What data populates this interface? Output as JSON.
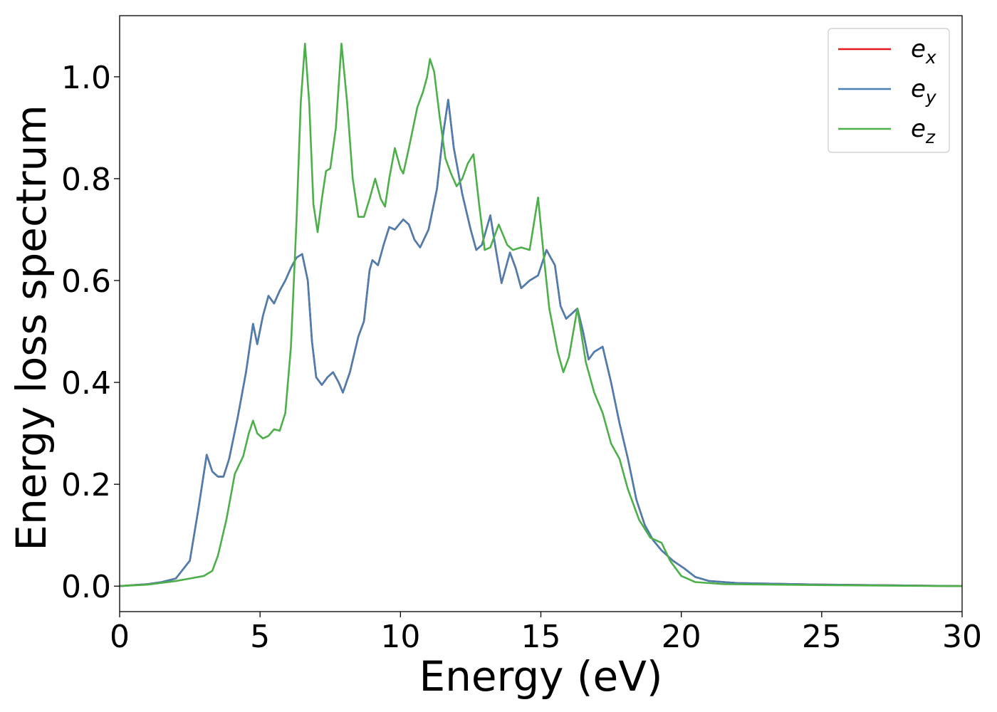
{
  "chart_data": {
    "type": "line",
    "title": "",
    "xlabel": "Energy (eV)",
    "ylabel": "Energy loss spectrum",
    "xlim": [
      0,
      30
    ],
    "ylim": [
      -0.05,
      1.12
    ],
    "xticks": [
      0,
      5,
      10,
      15,
      20,
      25,
      30
    ],
    "xtick_labels": [
      "0",
      "5",
      "10",
      "15",
      "20",
      "25",
      "30"
    ],
    "yticks": [
      0.0,
      0.2,
      0.4,
      0.6,
      0.8,
      1.0
    ],
    "ytick_labels": [
      "0.0",
      "0.2",
      "0.4",
      "0.6",
      "0.8",
      "1.0"
    ],
    "grid": false,
    "legend_position": "top-right",
    "series": [
      {
        "name": "e_x",
        "label_base": "e",
        "label_sub": "x",
        "color": "#e41a1c",
        "points": [
          [
            0,
            0.0
          ],
          [
            1,
            0.004
          ],
          [
            1.5,
            0.008
          ],
          [
            2,
            0.015
          ],
          [
            2.5,
            0.05
          ],
          [
            2.8,
            0.15
          ],
          [
            3.1,
            0.258
          ],
          [
            3.3,
            0.225
          ],
          [
            3.5,
            0.215
          ],
          [
            3.7,
            0.215
          ],
          [
            3.9,
            0.25
          ],
          [
            4.2,
            0.33
          ],
          [
            4.5,
            0.42
          ],
          [
            4.75,
            0.515
          ],
          [
            4.9,
            0.475
          ],
          [
            5.1,
            0.53
          ],
          [
            5.3,
            0.57
          ],
          [
            5.5,
            0.555
          ],
          [
            5.7,
            0.58
          ],
          [
            5.9,
            0.6
          ],
          [
            6.1,
            0.625
          ],
          [
            6.3,
            0.645
          ],
          [
            6.5,
            0.652
          ],
          [
            6.7,
            0.6
          ],
          [
            6.85,
            0.48
          ],
          [
            7.0,
            0.41
          ],
          [
            7.2,
            0.395
          ],
          [
            7.4,
            0.41
          ],
          [
            7.6,
            0.42
          ],
          [
            7.8,
            0.4
          ],
          [
            7.95,
            0.38
          ],
          [
            8.2,
            0.42
          ],
          [
            8.5,
            0.49
          ],
          [
            8.7,
            0.52
          ],
          [
            8.9,
            0.62
          ],
          [
            9.0,
            0.64
          ],
          [
            9.2,
            0.63
          ],
          [
            9.4,
            0.67
          ],
          [
            9.6,
            0.705
          ],
          [
            9.8,
            0.7
          ],
          [
            10.1,
            0.72
          ],
          [
            10.3,
            0.71
          ],
          [
            10.5,
            0.68
          ],
          [
            10.7,
            0.665
          ],
          [
            11.0,
            0.7
          ],
          [
            11.3,
            0.78
          ],
          [
            11.5,
            0.88
          ],
          [
            11.7,
            0.955
          ],
          [
            11.9,
            0.86
          ],
          [
            12.2,
            0.77
          ],
          [
            12.5,
            0.7
          ],
          [
            12.7,
            0.66
          ],
          [
            12.9,
            0.67
          ],
          [
            13.2,
            0.728
          ],
          [
            13.4,
            0.66
          ],
          [
            13.6,
            0.595
          ],
          [
            13.9,
            0.655
          ],
          [
            14.1,
            0.625
          ],
          [
            14.3,
            0.585
          ],
          [
            14.6,
            0.6
          ],
          [
            14.9,
            0.61
          ],
          [
            15.2,
            0.66
          ],
          [
            15.5,
            0.63
          ],
          [
            15.7,
            0.55
          ],
          [
            15.9,
            0.525
          ],
          [
            16.1,
            0.535
          ],
          [
            16.3,
            0.545
          ],
          [
            16.5,
            0.5
          ],
          [
            16.7,
            0.445
          ],
          [
            16.9,
            0.46
          ],
          [
            17.2,
            0.47
          ],
          [
            17.5,
            0.4
          ],
          [
            17.8,
            0.32
          ],
          [
            18.1,
            0.25
          ],
          [
            18.4,
            0.17
          ],
          [
            18.7,
            0.12
          ],
          [
            19.0,
            0.09
          ],
          [
            19.3,
            0.07
          ],
          [
            19.7,
            0.05
          ],
          [
            20.1,
            0.035
          ],
          [
            20.5,
            0.018
          ],
          [
            21.0,
            0.01
          ],
          [
            22.0,
            0.006
          ],
          [
            25.0,
            0.003
          ],
          [
            30.0,
            0.0
          ]
        ]
      },
      {
        "name": "e_y",
        "label_base": "e",
        "label_sub": "y",
        "color": "#4a7fb0",
        "points": [
          [
            0,
            0.0
          ],
          [
            1,
            0.004
          ],
          [
            1.5,
            0.008
          ],
          [
            2,
            0.015
          ],
          [
            2.5,
            0.05
          ],
          [
            2.8,
            0.15
          ],
          [
            3.1,
            0.258
          ],
          [
            3.3,
            0.225
          ],
          [
            3.5,
            0.215
          ],
          [
            3.7,
            0.215
          ],
          [
            3.9,
            0.25
          ],
          [
            4.2,
            0.33
          ],
          [
            4.5,
            0.42
          ],
          [
            4.75,
            0.515
          ],
          [
            4.9,
            0.475
          ],
          [
            5.1,
            0.53
          ],
          [
            5.3,
            0.57
          ],
          [
            5.5,
            0.555
          ],
          [
            5.7,
            0.58
          ],
          [
            5.9,
            0.6
          ],
          [
            6.1,
            0.625
          ],
          [
            6.3,
            0.645
          ],
          [
            6.5,
            0.652
          ],
          [
            6.7,
            0.6
          ],
          [
            6.85,
            0.48
          ],
          [
            7.0,
            0.41
          ],
          [
            7.2,
            0.395
          ],
          [
            7.4,
            0.41
          ],
          [
            7.6,
            0.42
          ],
          [
            7.8,
            0.4
          ],
          [
            7.95,
            0.38
          ],
          [
            8.2,
            0.42
          ],
          [
            8.5,
            0.49
          ],
          [
            8.7,
            0.52
          ],
          [
            8.9,
            0.62
          ],
          [
            9.0,
            0.64
          ],
          [
            9.2,
            0.63
          ],
          [
            9.4,
            0.67
          ],
          [
            9.6,
            0.705
          ],
          [
            9.8,
            0.7
          ],
          [
            10.1,
            0.72
          ],
          [
            10.3,
            0.71
          ],
          [
            10.5,
            0.68
          ],
          [
            10.7,
            0.665
          ],
          [
            11.0,
            0.7
          ],
          [
            11.3,
            0.78
          ],
          [
            11.5,
            0.88
          ],
          [
            11.7,
            0.955
          ],
          [
            11.9,
            0.86
          ],
          [
            12.2,
            0.77
          ],
          [
            12.5,
            0.7
          ],
          [
            12.7,
            0.66
          ],
          [
            12.9,
            0.67
          ],
          [
            13.2,
            0.728
          ],
          [
            13.4,
            0.66
          ],
          [
            13.6,
            0.595
          ],
          [
            13.9,
            0.655
          ],
          [
            14.1,
            0.625
          ],
          [
            14.3,
            0.585
          ],
          [
            14.6,
            0.6
          ],
          [
            14.9,
            0.61
          ],
          [
            15.2,
            0.66
          ],
          [
            15.5,
            0.63
          ],
          [
            15.7,
            0.55
          ],
          [
            15.9,
            0.525
          ],
          [
            16.1,
            0.535
          ],
          [
            16.3,
            0.545
          ],
          [
            16.5,
            0.5
          ],
          [
            16.7,
            0.445
          ],
          [
            16.9,
            0.46
          ],
          [
            17.2,
            0.47
          ],
          [
            17.5,
            0.4
          ],
          [
            17.8,
            0.32
          ],
          [
            18.1,
            0.25
          ],
          [
            18.4,
            0.17
          ],
          [
            18.7,
            0.12
          ],
          [
            19.0,
            0.09
          ],
          [
            19.3,
            0.07
          ],
          [
            19.7,
            0.05
          ],
          [
            20.1,
            0.035
          ],
          [
            20.5,
            0.018
          ],
          [
            21.0,
            0.01
          ],
          [
            22.0,
            0.006
          ],
          [
            25.0,
            0.003
          ],
          [
            30.0,
            0.0
          ]
        ]
      },
      {
        "name": "e_z",
        "label_base": "e",
        "label_sub": "z",
        "color": "#4daf4a",
        "points": [
          [
            0,
            0.0
          ],
          [
            1,
            0.003
          ],
          [
            2,
            0.01
          ],
          [
            2.5,
            0.015
          ],
          [
            3.0,
            0.02
          ],
          [
            3.3,
            0.03
          ],
          [
            3.5,
            0.06
          ],
          [
            3.8,
            0.13
          ],
          [
            4.1,
            0.22
          ],
          [
            4.4,
            0.255
          ],
          [
            4.6,
            0.3
          ],
          [
            4.75,
            0.325
          ],
          [
            4.9,
            0.3
          ],
          [
            5.1,
            0.29
          ],
          [
            5.3,
            0.295
          ],
          [
            5.5,
            0.308
          ],
          [
            5.7,
            0.305
          ],
          [
            5.9,
            0.34
          ],
          [
            6.1,
            0.47
          ],
          [
            6.3,
            0.72
          ],
          [
            6.45,
            0.95
          ],
          [
            6.6,
            1.065
          ],
          [
            6.75,
            0.95
          ],
          [
            6.9,
            0.75
          ],
          [
            7.05,
            0.695
          ],
          [
            7.2,
            0.76
          ],
          [
            7.35,
            0.815
          ],
          [
            7.5,
            0.82
          ],
          [
            7.7,
            0.9
          ],
          [
            7.9,
            1.065
          ],
          [
            8.1,
            0.95
          ],
          [
            8.3,
            0.8
          ],
          [
            8.5,
            0.725
          ],
          [
            8.7,
            0.725
          ],
          [
            8.9,
            0.76
          ],
          [
            9.1,
            0.8
          ],
          [
            9.3,
            0.76
          ],
          [
            9.45,
            0.745
          ],
          [
            9.6,
            0.8
          ],
          [
            9.8,
            0.86
          ],
          [
            10.0,
            0.82
          ],
          [
            10.1,
            0.81
          ],
          [
            10.3,
            0.86
          ],
          [
            10.6,
            0.94
          ],
          [
            10.8,
            0.97
          ],
          [
            10.95,
            1.0
          ],
          [
            11.05,
            1.035
          ],
          [
            11.2,
            1.01
          ],
          [
            11.4,
            0.92
          ],
          [
            11.6,
            0.84
          ],
          [
            11.8,
            0.81
          ],
          [
            12.0,
            0.785
          ],
          [
            12.2,
            0.8
          ],
          [
            12.4,
            0.83
          ],
          [
            12.6,
            0.848
          ],
          [
            12.8,
            0.75
          ],
          [
            13.0,
            0.66
          ],
          [
            13.2,
            0.665
          ],
          [
            13.5,
            0.71
          ],
          [
            13.8,
            0.67
          ],
          [
            14.0,
            0.66
          ],
          [
            14.3,
            0.665
          ],
          [
            14.6,
            0.66
          ],
          [
            14.9,
            0.763
          ],
          [
            15.1,
            0.65
          ],
          [
            15.3,
            0.545
          ],
          [
            15.6,
            0.46
          ],
          [
            15.8,
            0.42
          ],
          [
            16.0,
            0.45
          ],
          [
            16.3,
            0.545
          ],
          [
            16.6,
            0.44
          ],
          [
            16.9,
            0.38
          ],
          [
            17.2,
            0.34
          ],
          [
            17.5,
            0.28
          ],
          [
            17.8,
            0.25
          ],
          [
            18.1,
            0.19
          ],
          [
            18.5,
            0.13
          ],
          [
            18.9,
            0.095
          ],
          [
            19.3,
            0.085
          ],
          [
            19.6,
            0.05
          ],
          [
            20.0,
            0.02
          ],
          [
            20.5,
            0.008
          ],
          [
            21.5,
            0.004
          ],
          [
            25.0,
            0.002
          ],
          [
            30.0,
            0.0
          ]
        ]
      }
    ]
  }
}
